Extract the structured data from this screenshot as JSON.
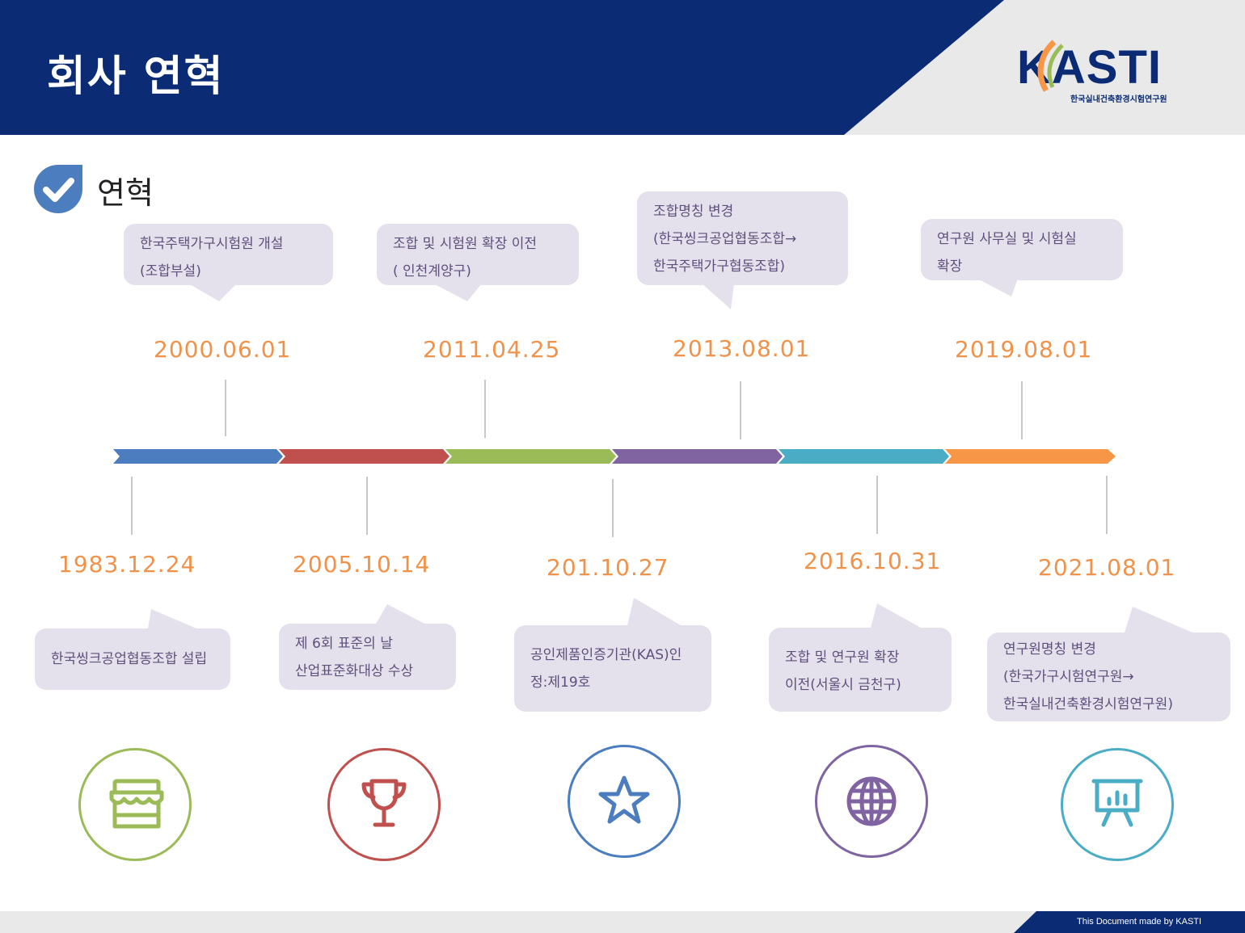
{
  "header": {
    "title": "회사 연혁",
    "logo_text": "KASTI",
    "logo_subtitle": "한국실내건축환경시험연구원"
  },
  "section": {
    "title": "연혁"
  },
  "colors": {
    "navy": "#0b2c74",
    "date_orange": "#f0924a",
    "bubble_bg": "#e5e1ec",
    "bubble_text": "#5e4f7c",
    "segments": [
      "#4b7dbf",
      "#c0504d",
      "#9bbb59",
      "#8064a2",
      "#4bacc6",
      "#f79646"
    ]
  },
  "timeline": {
    "top": [
      {
        "date": "2000.06.01",
        "lines": [
          "한국주택가구시험원 개설",
          "(조합부설)"
        ]
      },
      {
        "date": "2011.04.25",
        "lines": [
          "조합 및 시험원 확장 이전",
          "( 인천계양구)"
        ]
      },
      {
        "date": "2013.08.01",
        "lines": [
          "조합명칭 변경",
          "(한국씽크공업협동조합→",
          "한국주택가구협동조합)"
        ]
      },
      {
        "date": "2019.08.01",
        "lines": [
          "연구원 사무실 및 시험실",
          "확장"
        ]
      }
    ],
    "bottom": [
      {
        "date": "1983.12.24",
        "lines": [
          "한국씽크공업협동조합 설립"
        ]
      },
      {
        "date": "2005.10.14",
        "lines": [
          "제 6회 표준의 날",
          "산업표준화대상 수상"
        ]
      },
      {
        "date": "201.10.27",
        "lines": [
          "공인제품인증기관(KAS)인",
          "정:제19호"
        ]
      },
      {
        "date": "2016.10.31",
        "lines": [
          "조합 및 연구원 확장",
          "이전(서울시 금천구)"
        ]
      },
      {
        "date": "2021.08.01",
        "lines": [
          "연구원명칭 변경",
          "(한국가구시험연구원→",
          "한국실내건축환경시험연구원)"
        ]
      }
    ]
  },
  "icons": [
    {
      "name": "store-icon",
      "color": "#9bbb59"
    },
    {
      "name": "trophy-icon",
      "color": "#c0504d"
    },
    {
      "name": "star-icon",
      "color": "#4b7dbf"
    },
    {
      "name": "globe-icon",
      "color": "#8064a2"
    },
    {
      "name": "presentation-chart-icon",
      "color": "#4bacc6"
    }
  ],
  "footer": {
    "text": "This Document made by KASTI"
  }
}
